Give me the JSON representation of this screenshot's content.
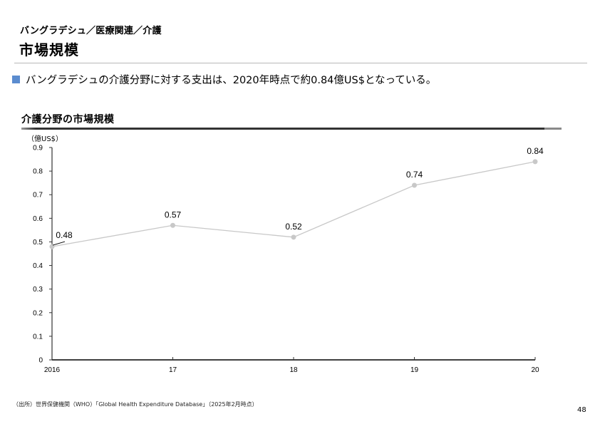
{
  "header": {
    "breadcrumb": "バングラデシュ／医療関連／介護",
    "title": "市場規模"
  },
  "summary": {
    "bullet_text": "バングラデシュの介護分野に対する支出は、2020年時点で約0.84億US$となっている。",
    "bullet_color": "#5b8ccf"
  },
  "chart_section": {
    "heading": "介護分野の市場規模",
    "unit_label": "（億US$）"
  },
  "chart_data": {
    "type": "line",
    "title": "介護分野の市場規模",
    "xlabel": "",
    "ylabel": "（億US$）",
    "categories": [
      "2016",
      "17",
      "18",
      "19",
      "20"
    ],
    "series": [
      {
        "name": "介護分野の市場規模",
        "values": [
          0.48,
          0.57,
          0.52,
          0.74,
          0.84
        ],
        "color": "#c8c8c8"
      }
    ],
    "data_labels": [
      "0.48",
      "0.57",
      "0.52",
      "0.74",
      "0.84"
    ],
    "yticks": [
      "0",
      "0.1",
      "0.2",
      "0.3",
      "0.4",
      "0.5",
      "0.6",
      "0.7",
      "0.8",
      "0.9"
    ],
    "ylim": [
      0,
      0.9
    ],
    "grid": false,
    "legend": "none"
  },
  "footer": {
    "source": "（出所）世界保健機関（WHO）「Global Health Expenditure Database」（2025年2月時点）",
    "page_number": "48"
  }
}
